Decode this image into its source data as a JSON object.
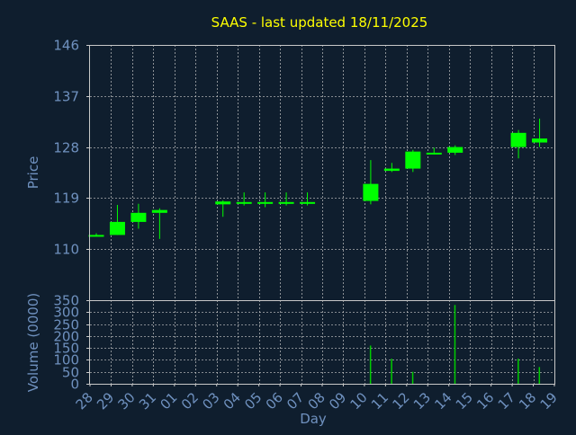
{
  "chart_data": [
    {
      "type": "candlestick",
      "title": "SAAS - last updated 18/11/2025",
      "ylabel": "Price",
      "ylim": [
        101,
        146
      ],
      "yticks": [
        146,
        137,
        128,
        119,
        110
      ],
      "grid": true,
      "x_tick_labels": [
        "28",
        "29",
        "30",
        "31",
        "01",
        "02",
        "03",
        "04",
        "05",
        "06",
        "07",
        "08",
        "09",
        "10",
        "11",
        "12",
        "13",
        "14",
        "15",
        "16",
        "17",
        "18",
        "19"
      ],
      "candles": [
        {
          "day": "28",
          "open": 112.5,
          "close": 112.5,
          "high": 112.8,
          "low": 112.3
        },
        {
          "day": "29",
          "open": 112.5,
          "close": 114.8,
          "high": 117.8,
          "low": 112.5
        },
        {
          "day": "30",
          "open": 114.8,
          "close": 116.4,
          "high": 118.0,
          "low": 113.6
        },
        {
          "day": "31",
          "open": 116.4,
          "close": 116.9,
          "high": 117.2,
          "low": 111.8
        },
        {
          "day": "03",
          "open": 118.4,
          "close": 117.9,
          "high": 118.6,
          "low": 115.7
        },
        {
          "day": "04",
          "open": 118.3,
          "close": 118.3,
          "high": 120.0,
          "low": 117.7
        },
        {
          "day": "05",
          "open": 118.3,
          "close": 118.3,
          "high": 120.0,
          "low": 117.4
        },
        {
          "day": "06",
          "open": 118.3,
          "close": 118.3,
          "high": 120.0,
          "low": 117.7
        },
        {
          "day": "07",
          "open": 118.3,
          "close": 118.3,
          "high": 120.0,
          "low": 117.7
        },
        {
          "day": "10",
          "open": 118.5,
          "close": 121.5,
          "high": 125.7,
          "low": 117.9
        },
        {
          "day": "11",
          "open": 123.8,
          "close": 124.2,
          "high": 125.2,
          "low": 123.6
        },
        {
          "day": "12",
          "open": 124.2,
          "close": 127.2,
          "high": 127.5,
          "low": 123.6
        },
        {
          "day": "13",
          "open": 127.0,
          "close": 127.0,
          "high": 127.9,
          "low": 126.7
        },
        {
          "day": "14",
          "open": 127.0,
          "close": 128.0,
          "high": 128.3,
          "low": 126.6
        },
        {
          "day": "17",
          "open": 128.0,
          "close": 130.5,
          "high": 131.0,
          "low": 126.0
        },
        {
          "day": "18",
          "open": 128.8,
          "close": 129.5,
          "high": 133.0,
          "low": 128.0
        }
      ]
    },
    {
      "type": "bar",
      "ylabel": "Volume (0000)",
      "xlabel": "Day",
      "ylim": [
        0,
        350
      ],
      "yticks": [
        350,
        300,
        250,
        200,
        150,
        100,
        50,
        0
      ],
      "grid": true,
      "categories": [
        "28",
        "29",
        "30",
        "31",
        "03",
        "04",
        "05",
        "06",
        "07",
        "10",
        "11",
        "12",
        "13",
        "14",
        "17",
        "18"
      ],
      "values": [
        0,
        0,
        0,
        0,
        0,
        0,
        0,
        0,
        0,
        160,
        105,
        50,
        0,
        330,
        105,
        70
      ]
    }
  ],
  "colors": {
    "background": "#0f1e2e",
    "plot_border": "#c8c8c8",
    "grid": "#c8c8c8",
    "candle": "#00ff00",
    "volume": "#00cc00",
    "title": "#ffff00",
    "axis_text": "#6f91bf"
  }
}
